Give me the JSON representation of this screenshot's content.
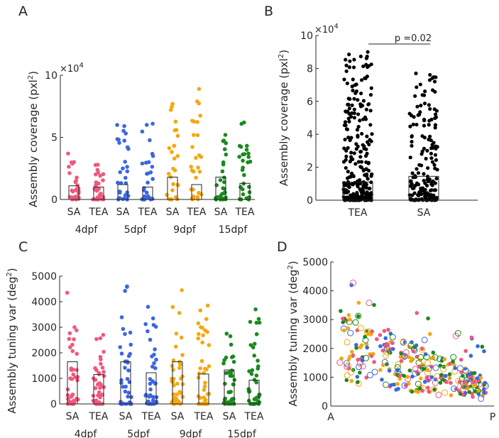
{
  "colors": {
    "4dpf": "#f0587d",
    "5dpf": "#3b67e0",
    "9dpf": "#f5a70f",
    "15dpf": "#1a8a1e",
    "black": "#000000"
  },
  "chart_data": [
    {
      "panel": "A",
      "type": "scatter",
      "ylabel": "Assembly coverage (pxl²)",
      "ylabel_parts": [
        "Assembly coverage (pxl",
        "2",
        ")"
      ],
      "exponent_label": "×10",
      "exponent_power": "4",
      "ylim": [
        0,
        10
      ],
      "yticks": [
        0,
        5,
        10
      ],
      "groups": [
        "SA",
        "TEA",
        "SA",
        "TEA",
        "SA",
        "TEA",
        "SA",
        "TEA"
      ],
      "ages": [
        "4dpf",
        "5dpf",
        "9dpf",
        "15dpf"
      ],
      "bar_means": [
        1.1,
        1.0,
        1.2,
        1.0,
        1.8,
        1.2,
        1.8,
        1.3
      ],
      "group_maxima": [
        3.7,
        2.8,
        6.0,
        6.1,
        7.7,
        8.9,
        5.2,
        6.2
      ]
    },
    {
      "panel": "B",
      "type": "scatter",
      "ylabel": "Assembly coverage (pxl²)",
      "ylabel_parts": [
        "Assembly coverage (pxl",
        "2",
        ")"
      ],
      "exponent_label": "×10",
      "exponent_power": "4",
      "ylim": [
        0,
        10
      ],
      "yticks": [
        0,
        2,
        4,
        6,
        8,
        10
      ],
      "categories": [
        "TEA",
        "SA"
      ],
      "bar_means": [
        1.1,
        1.45
      ],
      "group_maxima": [
        9.0,
        7.7
      ],
      "significance": "p =0.02"
    },
    {
      "panel": "C",
      "type": "scatter",
      "ylabel": "Assembly tuning var (deg²)",
      "ylabel_parts": [
        "Assembly tuning var (deg",
        "2",
        ")"
      ],
      "ylim": [
        0,
        5000
      ],
      "yticks": [
        0,
        1000,
        2000,
        3000,
        4000,
        5000
      ],
      "groups": [
        "SA",
        "TEA",
        "SA",
        "TEA",
        "SA",
        "TEA",
        "SA",
        "TEA"
      ],
      "ages": [
        "4dpf",
        "5dpf",
        "9dpf",
        "15dpf"
      ],
      "bar_means": [
        1650,
        1150,
        1650,
        1220,
        1650,
        1170,
        1330,
        930
      ],
      "group_maxima": [
        4350,
        2700,
        4600,
        3800,
        4450,
        3850,
        2750,
        3700
      ]
    },
    {
      "panel": "D",
      "type": "scatter",
      "ylabel": "Assembly tuning var (deg²)",
      "ylabel_parts": [
        "Assembly tuning var (deg",
        "2",
        ")"
      ],
      "ylim": [
        0,
        5000
      ],
      "yticks": [
        0,
        1000,
        2000,
        3000,
        4000,
        5000
      ],
      "xticks": [
        "A",
        "P"
      ],
      "markers": "filled = SA, open = TEA"
    }
  ],
  "panel_letters": [
    "A",
    "B",
    "C",
    "D"
  ]
}
